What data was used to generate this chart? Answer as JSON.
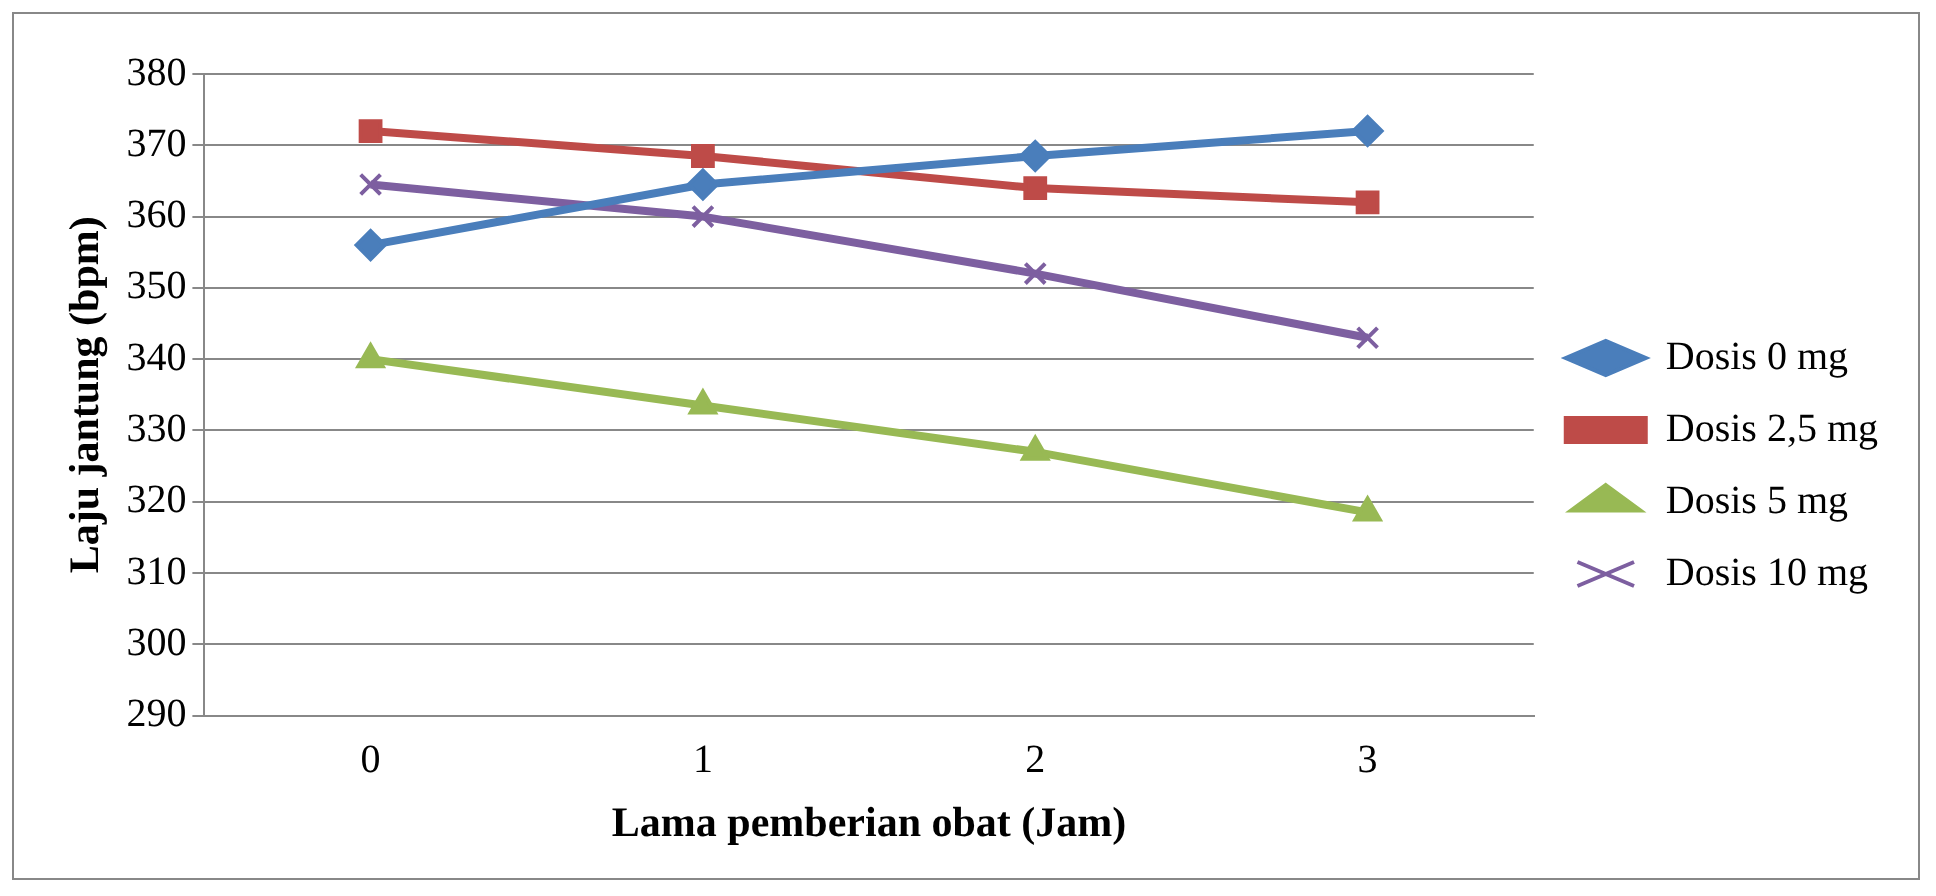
{
  "chart_data": {
    "type": "line",
    "xlabel": "Lama pemberian obat (Jam)",
    "ylabel": "Laju jantung (bpm)",
    "categories": [
      "0",
      "1",
      "2",
      "3"
    ],
    "series": [
      {
        "name": "Dosis 0 mg",
        "color": "#4a7ebb",
        "marker": "diamond",
        "values": [
          356,
          364.5,
          368.5,
          372
        ]
      },
      {
        "name": "Dosis 2,5 mg",
        "color": "#be4b48",
        "marker": "square",
        "values": [
          372,
          368.5,
          364,
          362
        ]
      },
      {
        "name": "Dosis 5 mg",
        "color": "#98b954",
        "marker": "triangle",
        "values": [
          340,
          333.5,
          327,
          318.5
        ]
      },
      {
        "name": "Dosis 10 mg",
        "color": "#7d5fa0",
        "marker": "cross",
        "values": [
          364.5,
          360,
          352,
          343
        ]
      }
    ],
    "ylim": [
      290,
      380
    ],
    "yticks": [
      290,
      300,
      310,
      320,
      330,
      340,
      350,
      360,
      370,
      380
    ],
    "grid": "y",
    "legend": "right"
  }
}
